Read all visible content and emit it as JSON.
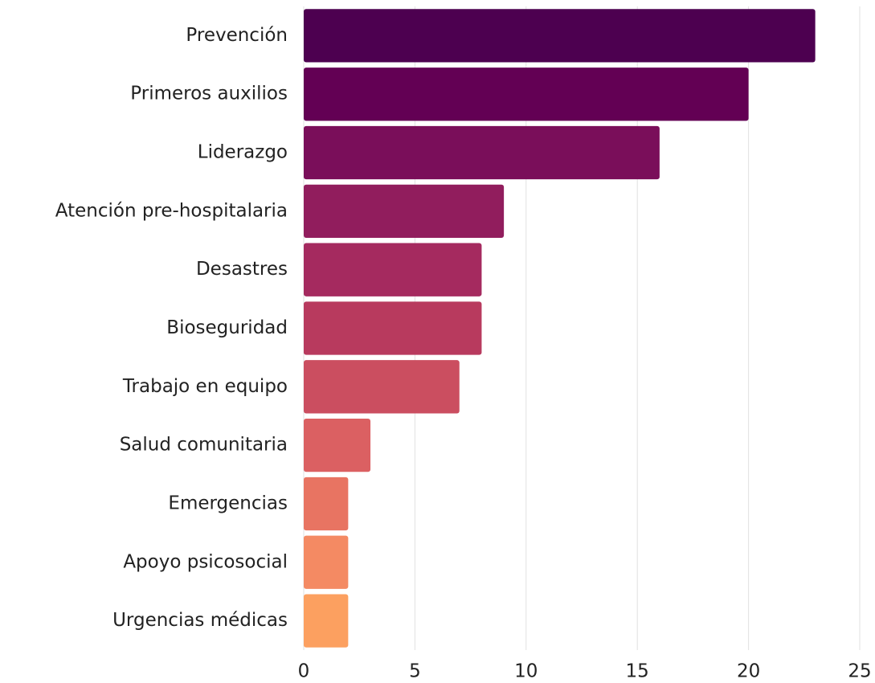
{
  "chart_data": {
    "type": "barh",
    "categories": [
      "Prevención",
      "Primeros auxilios",
      "Liderazgo",
      "Atención pre-hospitalaria",
      "Desastres",
      "Bioseguridad",
      "Trabajo en equipo",
      "Salud comunitaria",
      "Emergencias",
      "Apoyo psicosocial",
      "Urgencias médicas"
    ],
    "values": [
      23,
      20,
      16,
      9,
      8,
      8,
      7,
      3,
      2,
      2,
      2
    ],
    "colors": [
      "#4d0050",
      "#630054",
      "#7a0e5a",
      "#911d5d",
      "#a52a5f",
      "#b83a5e",
      "#cb4e60",
      "#db6062",
      "#e87462",
      "#f48a63",
      "#fca060"
    ],
    "xlim": [
      0,
      25
    ],
    "xticks": [
      0,
      5,
      10,
      15,
      20,
      25
    ],
    "grid": true
  }
}
